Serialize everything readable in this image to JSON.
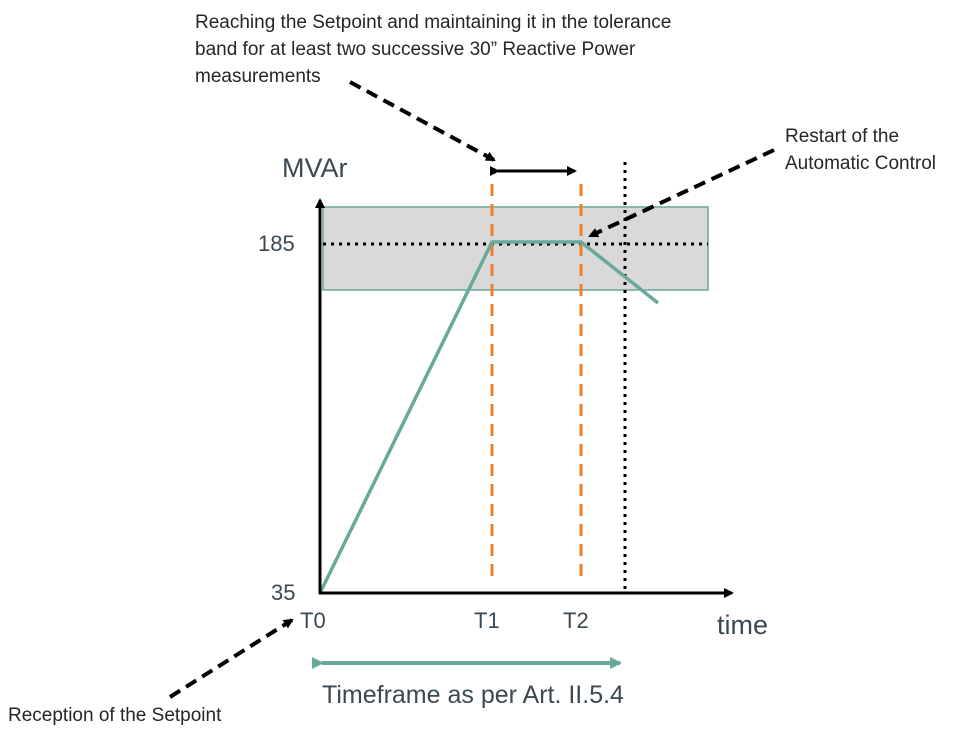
{
  "annotations": {
    "setpoint_reach": [
      "Reaching the Setpoint and maintaining it in the tolerance",
      "band for at least two successive 30” Reactive Power",
      "measurements"
    ],
    "restart": [
      "Restart of the",
      "Automatic Control"
    ],
    "reception": "Reception of the Setpoint",
    "timeframe": "Timeframe as per Art. II.5.4"
  },
  "axes": {
    "y_label": "MVAr",
    "x_label": "time",
    "y_ticks": [
      "185",
      "35"
    ],
    "x_ticks": [
      "T0",
      "T1",
      "T2"
    ]
  },
  "colors": {
    "response_line": "#69a89c",
    "tolerance_band_fill": "#d9d9d9",
    "tolerance_band_border": "#6aa599",
    "marker_lines": "#f07f2d",
    "axis": "#000000"
  },
  "chart_data": {
    "type": "line",
    "x": [
      "T0",
      "T1",
      "T2"
    ],
    "series": [
      {
        "values": [
          35,
          185,
          185
        ]
      }
    ],
    "setpoint": 185,
    "y_min_label": 35
  }
}
